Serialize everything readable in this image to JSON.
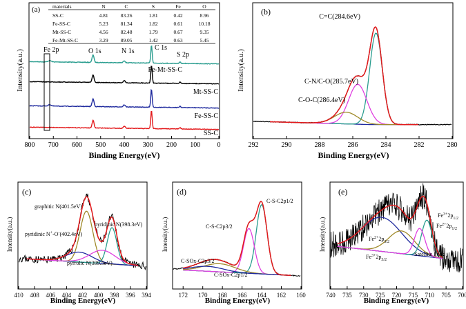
{
  "chart_data": [
    {
      "id": "a",
      "type": "line",
      "label": "(a)",
      "xlabel": "Binding Energy(eV)",
      "ylabel": "Intensity(a.u.)",
      "xlim": [
        800,
        0
      ],
      "xticks": [
        "800",
        "700",
        "600",
        "500",
        "400",
        "300",
        "200",
        "100",
        "0"
      ],
      "table": {
        "columns": [
          "materials",
          "N",
          "C",
          "S",
          "Fe",
          "O"
        ],
        "rows": [
          [
            "SS-C",
            "4.81",
            "83.26",
            "1.81",
            "0.42",
            "8.96"
          ],
          [
            "Fe-SS-C",
            "5.23",
            "81.34",
            "1.82",
            "0.61",
            "10.18"
          ],
          [
            "Mt-SS-C",
            "4.56",
            "82.48",
            "1.79",
            "0.67",
            "9.35"
          ],
          [
            "Fe-Mt-SS-C",
            "3.29",
            "89.05",
            "1.42",
            "0.63",
            "5.45"
          ]
        ]
      },
      "peak_labels": [
        "Fe 2p",
        "O 1s",
        "N 1s",
        "C 1s",
        "S 2p"
      ],
      "peaks": [
        {
          "name": "Fe 2p",
          "x": 715
        },
        {
          "name": "O 1s",
          "x": 532
        },
        {
          "name": "N 1s",
          "x": 400
        },
        {
          "name": "C 1s",
          "x": 285
        },
        {
          "name": "S 2p",
          "x": 164
        }
      ],
      "series": [
        {
          "name": "Fe-Mt-SS-C",
          "color": "#2a9d8f"
        },
        {
          "name": "Mt-SS-C",
          "color": "#000000"
        },
        {
          "name": "Fe-SS-C",
          "color": "#1f2a9e"
        },
        {
          "name": "SS-C",
          "color": "#e31a1c"
        }
      ]
    },
    {
      "id": "b",
      "type": "line",
      "label": "(b)",
      "xlabel": "Binding Energy(eV)",
      "ylabel": "Intensity(a.u.)",
      "xlim": [
        292,
        280
      ],
      "xticks": [
        "292",
        "290",
        "288",
        "286",
        "284",
        "282",
        "280"
      ],
      "annotations": [
        "C=C(284.6eV)",
        "C-N/C-O(285.7eV)",
        "C-O-C(286.4eV)"
      ],
      "components": [
        {
          "name": "C=C",
          "center": 284.6,
          "height": 0.78,
          "color": "#2a9d8f"
        },
        {
          "name": "C-N/C-O",
          "center": 285.7,
          "height": 0.34,
          "color": "#e040e0"
        },
        {
          "name": "C-O-C",
          "center": 286.4,
          "height": 0.1,
          "color": "#a08a2a"
        }
      ]
    },
    {
      "id": "c",
      "type": "line",
      "label": "(c)",
      "xlabel": "Binding Energy(eV)",
      "ylabel": "Intensity(a.u.)",
      "xlim": [
        410,
        394
      ],
      "xticks": [
        "410",
        "408",
        "406",
        "404",
        "402",
        "400",
        "398",
        "396",
        "394"
      ],
      "annotations": [
        "graphitic N(401.5eV)",
        "pyridinic N(398.3eV)",
        "pyridinic N+-O-(402.4eV)",
        "pyrrolic N(399.5eV)"
      ],
      "components": [
        {
          "name": "graphitic N",
          "center": 401.5,
          "height": 0.62,
          "color": "#a08a2a"
        },
        {
          "name": "pyridinic N",
          "center": 398.3,
          "height": 0.44,
          "color": "#2a9d8f"
        },
        {
          "name": "pyridinic N+-O-",
          "center": 402.4,
          "height": 0.12,
          "color": "#1f2a9e"
        },
        {
          "name": "pyrrolic N",
          "center": 399.5,
          "height": 0.16,
          "color": "#e040e0"
        }
      ]
    },
    {
      "id": "d",
      "type": "line",
      "label": "(d)",
      "xlabel": "Binding Energy(eV)",
      "ylabel": "Intensity(a.u.)",
      "xlim": [
        173,
        160
      ],
      "xticks": [
        "172",
        "170",
        "168",
        "166",
        "164",
        "162",
        "160"
      ],
      "annotations": [
        "C-S-C2p1/2",
        "C-S-C2p3/2",
        "C-SOx-C2p3/2",
        "C-SOx-C2p1/2"
      ],
      "components": [
        {
          "name": "C-S-C2p1/2",
          "center": 164.0,
          "height": 0.85,
          "color": "#2a9d8f"
        },
        {
          "name": "C-S-C2p3/2",
          "center": 165.3,
          "height": 0.55,
          "color": "#e040e0"
        },
        {
          "name": "C-SOx-C2p3/2",
          "center": 168.3,
          "height": 0.1,
          "color": "#a08a2a"
        },
        {
          "name": "C-SOx-C2p1/2",
          "center": 169.5,
          "height": 0.06,
          "color": "#1f2a9e"
        }
      ]
    },
    {
      "id": "e",
      "type": "line",
      "label": "(e)",
      "xlabel": "Binding Energy(eV)",
      "ylabel": "Intensity(a.u.)",
      "xlim": [
        740,
        700
      ],
      "xticks": [
        "740",
        "735",
        "730",
        "725",
        "720",
        "715",
        "710",
        "705",
        "700"
      ],
      "annotations": [
        {
          "base": "Fe",
          "sup": "3+",
          "tail": "2p",
          "sub": "1/2"
        },
        {
          "base": "Fe",
          "sup": "2+",
          "tail": "2p",
          "sub": "1/2"
        },
        {
          "base": "Fe",
          "sup": "2+",
          "tail": "2p",
          "sub": "3/2"
        },
        {
          "base": "Fe",
          "sup": "3+",
          "tail": "2p",
          "sub": "3/2"
        },
        {
          "text": "Satellite Peak"
        }
      ],
      "components": [
        {
          "name": "Fe2+ 2p3/2",
          "center": 724.5,
          "height": 0.45,
          "color": "#1f2a9e"
        },
        {
          "name": "Fe3+ 2p3/2",
          "center": 718.5,
          "height": 0.3,
          "color": "#a08a2a"
        },
        {
          "name": "Fe3+ 2p1/2",
          "center": 710.8,
          "height": 0.48,
          "color": "#2a9d8f"
        },
        {
          "name": "Fe2+ 2p1/2",
          "center": 713.0,
          "height": 0.36,
          "color": "#e040e0"
        }
      ]
    }
  ]
}
